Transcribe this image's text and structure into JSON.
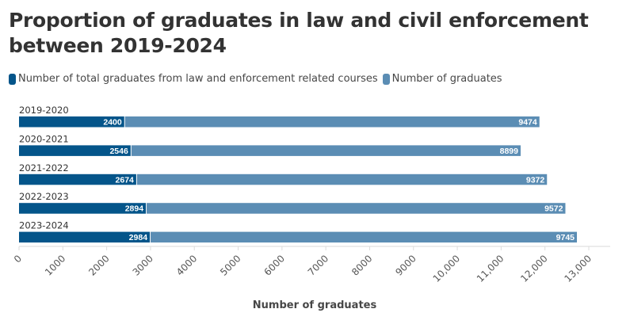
{
  "chart_data": {
    "type": "bar",
    "orientation": "horizontal",
    "stacked": true,
    "title": "Proportion of graduates in law and civil enforcement between 2019-2024",
    "xlabel": "Number of graduates",
    "ylabel": "",
    "xlim": [
      0,
      13000
    ],
    "xticks": [
      0,
      1000,
      2000,
      3000,
      4000,
      5000,
      6000,
      7000,
      8000,
      9000,
      10000,
      11000,
      12000,
      13000
    ],
    "xtick_labels": [
      "0",
      "1000",
      "2000",
      "3000",
      "4000",
      "5000",
      "6000",
      "7000",
      "8000",
      "9000",
      "10,000",
      "11,000",
      "12,000",
      "13,000"
    ],
    "grid": false,
    "legend_position": "top-left",
    "categories": [
      "2019-2020",
      "2020-2021",
      "2021-2022",
      "2022-2023",
      "2023-2024"
    ],
    "series": [
      {
        "name": "Number of total graduates from law and enforcement related courses",
        "color": "#04558a",
        "values": [
          2400,
          2546,
          2674,
          2894,
          2984
        ]
      },
      {
        "name": "Number of graduates",
        "color": "#5b8db4",
        "values": [
          9474,
          8899,
          9372,
          9572,
          9745
        ]
      }
    ]
  }
}
